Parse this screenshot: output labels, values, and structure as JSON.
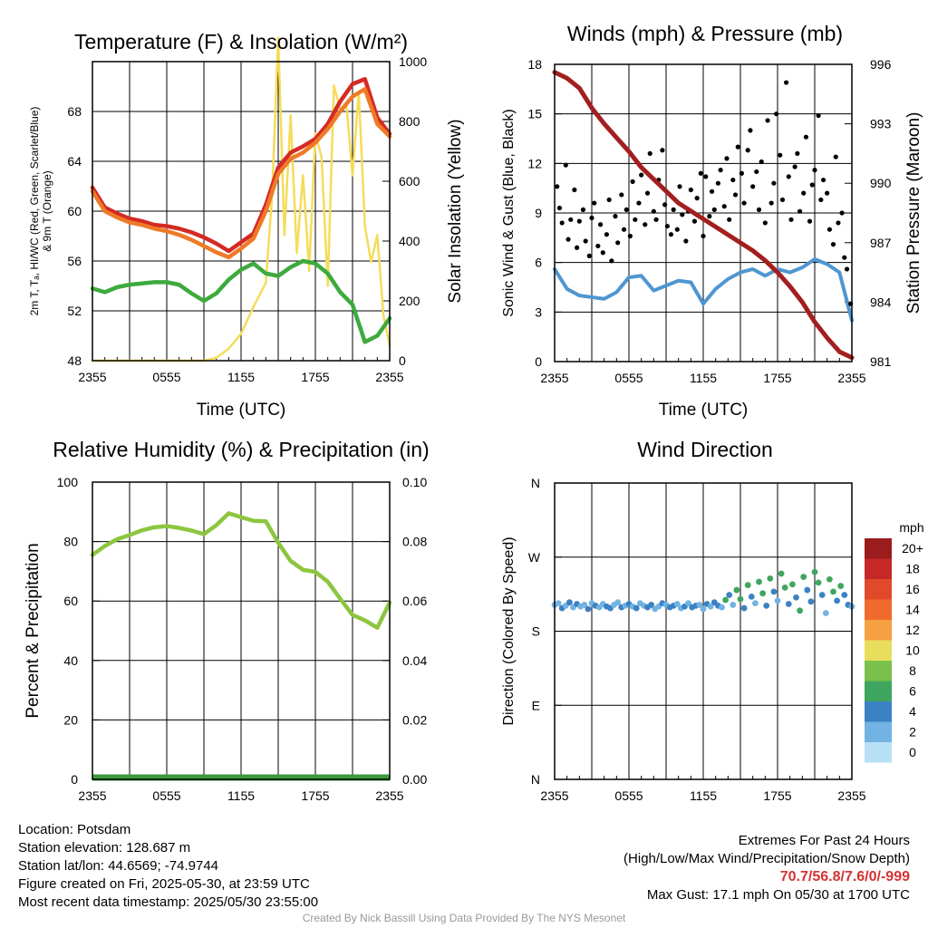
{
  "footer": {
    "location": "Location: Potsdam",
    "elevation": "Station elevation: 128.687 m",
    "latlon": "Station lat/lon: 44.6569; -74.9744",
    "created": "Figure created on Fri, 2025-05-30, at 23:59 UTC",
    "recent": "Most recent data timestamp: 2025/05/30 23:55:00",
    "extremes_title": "Extremes For Past 24 Hours",
    "extremes_sub": "(High/Low/Max Wind/Precipitation/Snow Depth)",
    "extremes_values": "70.7/56.8/7.6/0/-999",
    "max_gust": "Max Gust: 17.1 mph On 05/30 at 1700 UTC",
    "credit": "Created By Nick Bassill Using Data Provided By The NYS Mesonet"
  },
  "chart_data": [
    {
      "type": "line",
      "title": "Temperature (F) & Insolation (W/m²)",
      "xlabel": "Time (UTC)",
      "ylabel_line1": "2m T, Tₐ, HI/WC (Red, Green, Scarlet/Blue)",
      "ylabel_line2": "& 9m T (Orange)",
      "y2label": "Solar Insolation (Yellow)",
      "x_ticks": [
        "2355",
        "0555",
        "1155",
        "1755",
        "2355"
      ],
      "x_range_hours": [
        0,
        24
      ],
      "ylim": [
        48,
        72
      ],
      "y_ticks": [
        48,
        52,
        56,
        60,
        64,
        68
      ],
      "y2lim": [
        0,
        1000
      ],
      "y2_ticks": [
        0,
        200,
        400,
        600,
        800,
        1000
      ],
      "grid": true,
      "series": [
        {
          "name": "Temperature",
          "color": "#d42a23",
          "axis": "left",
          "x": [
            0,
            1,
            2,
            3,
            4,
            5,
            6,
            7,
            8,
            9,
            10,
            11,
            12,
            13,
            14,
            15,
            16,
            17,
            18,
            19,
            20,
            21,
            22,
            23,
            24
          ],
          "values": [
            61.9,
            60.3,
            59.8,
            59.4,
            59.2,
            58.9,
            58.8,
            58.6,
            58.3,
            57.9,
            57.4,
            56.8,
            57.5,
            58.2,
            60.5,
            63.5,
            64.7,
            65.2,
            65.8,
            67.0,
            68.8,
            70.2,
            70.6,
            67.5,
            66.2
          ]
        },
        {
          "name": "Heat Index / Wind Chill",
          "color": "#ef7a26",
          "axis": "left",
          "x": [
            0,
            1,
            2,
            3,
            4,
            5,
            6,
            7,
            8,
            9,
            10,
            11,
            12,
            13,
            14,
            15,
            16,
            17,
            18,
            19,
            20,
            21,
            22,
            23,
            24
          ],
          "values": [
            61.6,
            60.0,
            59.5,
            59.1,
            58.9,
            58.6,
            58.4,
            58.1,
            57.7,
            57.2,
            56.7,
            56.3,
            57.0,
            57.8,
            60.0,
            63.0,
            64.2,
            64.7,
            65.5,
            66.6,
            68.0,
            69.2,
            69.8,
            67.0,
            66.0
          ]
        },
        {
          "name": "Dewpoint",
          "color": "#3daa3d",
          "axis": "left",
          "x": [
            0,
            1,
            2,
            3,
            4,
            5,
            6,
            7,
            8,
            9,
            10,
            11,
            12,
            13,
            14,
            15,
            16,
            17,
            18,
            19,
            20,
            21,
            22,
            23,
            24
          ],
          "values": [
            53.8,
            53.5,
            53.9,
            54.1,
            54.2,
            54.3,
            54.3,
            54.1,
            53.4,
            52.8,
            53.4,
            54.5,
            55.3,
            55.8,
            55.0,
            54.8,
            55.5,
            56.0,
            55.8,
            55.0,
            53.5,
            52.5,
            49.5,
            50.0,
            51.4
          ]
        },
        {
          "name": "Solar Insolation",
          "color": "#f5dc5a",
          "axis": "right",
          "x": [
            0,
            1,
            2,
            3,
            4,
            5,
            6,
            7,
            8,
            9,
            10,
            11,
            12,
            13,
            14,
            14.5,
            15,
            15.5,
            16,
            16.5,
            17,
            17.5,
            18,
            18.5,
            19,
            19.5,
            20,
            20.5,
            21,
            21.5,
            22,
            22.5,
            23,
            23.5,
            24
          ],
          "values": [
            0,
            0,
            0,
            0,
            0,
            0,
            0,
            0,
            0,
            0,
            10,
            40,
            90,
            180,
            260,
            550,
            1080,
            420,
            820,
            360,
            620,
            300,
            760,
            680,
            250,
            920,
            840,
            860,
            620,
            900,
            450,
            330,
            420,
            150,
            50
          ]
        }
      ]
    },
    {
      "type": "scatter",
      "title": "Winds (mph) & Pressure (mb)",
      "xlabel": "Time (UTC)",
      "ylabel": "Sonic Wind & Gust (Blue, Black)",
      "y2label": "Station Pressure (Maroon)",
      "x_ticks": [
        "2355",
        "0555",
        "1155",
        "1755",
        "2355"
      ],
      "x_range_hours": [
        0,
        24
      ],
      "ylim": [
        0,
        18
      ],
      "y_ticks": [
        0,
        3,
        6,
        9,
        12,
        15,
        18
      ],
      "y2lim": [
        981,
        996
      ],
      "y2_ticks": [
        981,
        984,
        987,
        990,
        993,
        996
      ],
      "grid": true,
      "series": [
        {
          "name": "Station Pressure",
          "color": "#a31f1f",
          "axis": "right",
          "x": [
            0,
            1,
            2,
            3,
            4,
            5,
            6,
            7,
            8,
            9,
            10,
            11,
            12,
            13,
            14,
            15,
            16,
            17,
            18,
            19,
            20,
            21,
            22,
            23,
            24
          ],
          "values": [
            995.6,
            995.3,
            994.8,
            993.8,
            993.0,
            992.3,
            991.6,
            990.8,
            990.2,
            989.6,
            989.0,
            988.6,
            988.2,
            987.8,
            987.4,
            987.0,
            986.6,
            986.1,
            985.5,
            984.8,
            984.0,
            983.0,
            982.2,
            981.5,
            981.2
          ]
        },
        {
          "name": "Sonic Wind",
          "color": "#4f96d1",
          "axis": "left",
          "x": [
            0,
            1,
            2,
            3,
            4,
            5,
            6,
            7,
            8,
            9,
            10,
            11,
            12,
            13,
            14,
            15,
            16,
            17,
            18,
            19,
            20,
            21,
            22,
            23,
            24
          ],
          "values": [
            5.6,
            4.4,
            4.0,
            3.9,
            3.8,
            4.2,
            5.1,
            5.2,
            4.3,
            4.6,
            4.9,
            4.8,
            3.5,
            4.4,
            5.0,
            5.4,
            5.6,
            5.2,
            5.6,
            5.4,
            5.7,
            6.2,
            5.9,
            5.4,
            2.5
          ]
        },
        {
          "name": "Gust",
          "color": "#000000",
          "axis": "left",
          "x": [
            0.2,
            0.4,
            0.6,
            0.9,
            1.1,
            1.3,
            1.6,
            1.8,
            2.0,
            2.3,
            2.5,
            2.8,
            3.0,
            3.2,
            3.5,
            3.7,
            3.9,
            4.2,
            4.4,
            4.6,
            4.9,
            5.1,
            5.4,
            5.6,
            5.8,
            6.1,
            6.3,
            6.5,
            6.8,
            7.0,
            7.3,
            7.5,
            7.7,
            8.0,
            8.2,
            8.4,
            8.7,
            8.9,
            9.1,
            9.4,
            9.6,
            9.9,
            10.1,
            10.3,
            10.6,
            10.8,
            11.0,
            11.3,
            11.5,
            11.8,
            12.0,
            12.2,
            12.5,
            12.7,
            12.9,
            13.2,
            13.4,
            13.7,
            13.9,
            14.1,
            14.4,
            14.6,
            14.8,
            15.1,
            15.3,
            15.6,
            15.8,
            16.0,
            16.3,
            16.5,
            16.7,
            17.0,
            17.2,
            17.5,
            17.7,
            17.9,
            18.2,
            18.4,
            18.7,
            18.9,
            19.1,
            19.4,
            19.6,
            19.8,
            20.1,
            20.3,
            20.6,
            20.8,
            21.0,
            21.3,
            21.5,
            21.7,
            22.0,
            22.2,
            22.5,
            22.7,
            22.9,
            23.2,
            23.4,
            23.6,
            23.9
          ],
          "values": [
            10.6,
            9.3,
            8.4,
            11.9,
            7.4,
            8.6,
            10.4,
            6.9,
            8.5,
            9.2,
            7.3,
            6.4,
            8.7,
            9.6,
            7.0,
            8.3,
            6.6,
            7.7,
            9.8,
            6.1,
            8.8,
            7.2,
            10.1,
            8.0,
            9.2,
            7.6,
            10.9,
            8.6,
            9.6,
            11.3,
            8.3,
            10.2,
            12.6,
            9.1,
            8.6,
            11.0,
            12.8,
            9.5,
            8.2,
            7.7,
            9.2,
            8.0,
            10.6,
            8.9,
            7.3,
            9.1,
            10.4,
            8.5,
            9.9,
            11.4,
            7.6,
            11.2,
            8.8,
            10.3,
            9.2,
            10.8,
            11.6,
            9.4,
            12.3,
            8.6,
            11.0,
            10.1,
            13.0,
            11.4,
            9.6,
            12.8,
            14.0,
            10.6,
            11.5,
            9.2,
            12.1,
            8.4,
            14.6,
            9.6,
            10.8,
            15.0,
            12.5,
            9.8,
            16.9,
            11.2,
            8.6,
            11.8,
            12.6,
            9.1,
            10.2,
            13.6,
            8.5,
            10.7,
            11.6,
            14.9,
            9.8,
            11.0,
            10.2,
            8.0,
            7.1,
            12.4,
            8.4,
            9.0,
            6.3,
            5.6,
            3.5
          ]
        }
      ]
    },
    {
      "type": "line",
      "title": "Relative Humidity (%) & Precipitation (in)",
      "ylabel": "Percent & Precipitation",
      "x_ticks": [
        "2355",
        "0555",
        "1155",
        "1755",
        "2355"
      ],
      "x_range_hours": [
        0,
        24
      ],
      "ylim": [
        0,
        100
      ],
      "y_ticks": [
        0,
        20,
        40,
        60,
        80,
        100
      ],
      "y2lim": [
        0,
        0.1
      ],
      "y2_ticks": [
        "0.00",
        "0.02",
        "0.04",
        "0.06",
        "0.08",
        "0.10"
      ],
      "grid": true,
      "series": [
        {
          "name": "Relative Humidity",
          "color": "#8cc63f",
          "axis": "left",
          "x": [
            0,
            1,
            2,
            3,
            4,
            5,
            6,
            7,
            8,
            9,
            10,
            11,
            12,
            13,
            14,
            15,
            16,
            17,
            18,
            19,
            20,
            21,
            22,
            23,
            24
          ],
          "values": [
            75.5,
            78.5,
            80.8,
            82.2,
            83.8,
            84.8,
            85.2,
            84.6,
            83.7,
            82.5,
            85.5,
            89.5,
            88.2,
            87.0,
            86.8,
            79.6,
            73.5,
            70.5,
            69.8,
            66.5,
            60.8,
            55.3,
            53.5,
            51.0,
            59.5
          ]
        },
        {
          "name": "Precipitation",
          "color": "#3a9a3a",
          "axis": "right",
          "x": [
            0,
            24
          ],
          "values": [
            0.0,
            0.0
          ]
        }
      ]
    },
    {
      "type": "scatter",
      "title": "Wind Direction",
      "ylabel": "Direction (Colored By Speed)",
      "x_ticks": [
        "2355",
        "0555",
        "1155",
        "1755",
        "2355"
      ],
      "x_range_hours": [
        0,
        24
      ],
      "y_range_degrees": [
        0,
        360
      ],
      "y_ticks": [
        "N",
        "E",
        "S",
        "W",
        "N"
      ],
      "y_tick_degrees": [
        0,
        90,
        180,
        270,
        360
      ],
      "grid": true,
      "legend": {
        "placement": "right",
        "title": "mph",
        "labels": [
          "20+",
          "18",
          "16",
          "14",
          "12",
          "10",
          "8",
          "6",
          "4",
          "2",
          "0"
        ],
        "colors": [
          "#9b1c1c",
          "#c62828",
          "#e04a2a",
          "#f06a2d",
          "#f5a141",
          "#e8de5c",
          "#79c14b",
          "#3ea65e",
          "#3b82c4",
          "#73b3e3",
          "#b8e0f5"
        ]
      },
      "series": [
        {
          "name": "Wind Direction",
          "x": [
            0.0,
            0.3,
            0.6,
            0.9,
            1.2,
            1.5,
            1.8,
            2.1,
            2.4,
            2.7,
            3.0,
            3.3,
            3.6,
            3.9,
            4.2,
            4.5,
            4.8,
            5.1,
            5.4,
            5.7,
            6.0,
            6.3,
            6.6,
            6.9,
            7.2,
            7.5,
            7.8,
            8.1,
            8.4,
            8.7,
            9.0,
            9.3,
            9.6,
            9.9,
            10.2,
            10.5,
            10.8,
            11.1,
            11.4,
            11.7,
            12.0,
            12.3,
            12.6,
            12.9,
            13.2,
            13.5,
            13.8,
            14.1,
            14.4,
            14.7,
            15.0,
            15.3,
            15.6,
            15.9,
            16.2,
            16.5,
            16.8,
            17.1,
            17.4,
            17.7,
            18.0,
            18.3,
            18.6,
            18.9,
            19.2,
            19.5,
            19.8,
            20.1,
            20.4,
            20.7,
            21.0,
            21.3,
            21.6,
            21.9,
            22.2,
            22.5,
            22.8,
            23.1,
            23.4,
            23.7,
            24.0
          ],
          "values": [
            212,
            214,
            208,
            211,
            215,
            209,
            213,
            210,
            212,
            207,
            214,
            211,
            209,
            213,
            210,
            208,
            212,
            215,
            209,
            211,
            213,
            210,
            208,
            214,
            211,
            209,
            212,
            207,
            210,
            214,
            212,
            209,
            211,
            213,
            208,
            210,
            214,
            209,
            211,
            212,
            207,
            213,
            210,
            215,
            211,
            209,
            218,
            224,
            212,
            230,
            219,
            208,
            236,
            222,
            214,
            240,
            226,
            211,
            244,
            228,
            217,
            250,
            233,
            213,
            237,
            221,
            205,
            246,
            230,
            216,
            252,
            239,
            224,
            202,
            243,
            228,
            217,
            235,
            224,
            212,
            210
          ],
          "speed_mph": [
            3,
            2,
            4,
            3,
            5,
            3,
            4,
            2,
            3,
            5,
            3,
            4,
            2,
            3,
            5,
            4,
            3,
            2,
            4,
            3,
            5,
            3,
            4,
            2,
            3,
            4,
            5,
            3,
            2,
            4,
            3,
            5,
            4,
            3,
            2,
            4,
            3,
            5,
            4,
            3,
            2,
            4,
            3,
            5,
            4,
            3,
            6,
            5,
            3,
            7,
            6,
            4,
            7,
            5,
            3,
            6,
            7,
            4,
            6,
            5,
            3,
            7,
            6,
            4,
            7,
            5,
            6,
            7,
            5,
            4,
            6,
            7,
            5,
            3,
            7,
            6,
            4,
            6,
            5,
            4,
            3
          ]
        }
      ]
    }
  ]
}
